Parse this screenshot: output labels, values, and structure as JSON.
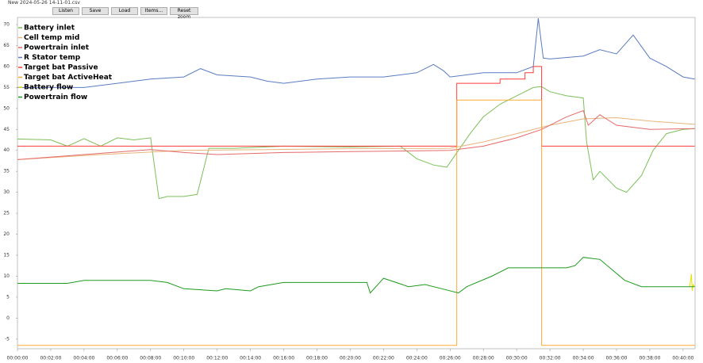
{
  "window": {
    "title": "New 2024-05-26 14-11-01.csv",
    "buttons": [
      "Listen",
      "Save",
      "Load",
      "Items...",
      "Reset zoom"
    ]
  },
  "chart_data": {
    "type": "line",
    "legend": "upper left",
    "grid": false,
    "xlim": [
      0,
      40.72
    ],
    "ylim": [
      -7.3,
      71.7
    ],
    "xticks": [
      {
        "value": 0,
        "label": "00:00:00"
      },
      {
        "value": 2,
        "label": "00:02:00"
      },
      {
        "value": 4,
        "label": "00:04:00"
      },
      {
        "value": 6,
        "label": "00:06:00"
      },
      {
        "value": 8,
        "label": "00:08:00"
      },
      {
        "value": 10,
        "label": "00:10:00"
      },
      {
        "value": 12,
        "label": "00:12:00"
      },
      {
        "value": 14,
        "label": "00:14:00"
      },
      {
        "value": 16,
        "label": "00:16:00"
      },
      {
        "value": 18,
        "label": "00:18:00"
      },
      {
        "value": 20,
        "label": "00:20:00"
      },
      {
        "value": 22,
        "label": "00:22:00"
      },
      {
        "value": 24,
        "label": "00:24:00"
      },
      {
        "value": 26,
        "label": "00:26:00"
      },
      {
        "value": 28,
        "label": "00:28:00"
      },
      {
        "value": 30,
        "label": "00:30:00"
      },
      {
        "value": 32,
        "label": "00:32:00"
      },
      {
        "value": 34,
        "label": "00:34:00"
      },
      {
        "value": 36,
        "label": "00:36:00"
      },
      {
        "value": 38,
        "label": "00:38:00"
      },
      {
        "value": 40,
        "label": "00:40:00"
      }
    ],
    "yticks": [
      -5,
      0,
      5,
      10,
      15,
      20,
      25,
      30,
      35,
      40,
      45,
      50,
      55,
      60,
      65,
      70
    ],
    "series": [
      {
        "name": "Battery inlet",
        "color": "#7cc05a",
        "x": [
          0,
          2,
          3,
          4,
          5,
          6,
          7,
          8,
          8.5,
          9,
          10,
          10.8,
          11.5,
          13,
          16,
          20,
          23,
          24,
          25,
          25.8,
          26.5,
          27.2,
          28,
          29,
          30,
          31,
          31.5,
          32,
          33,
          34,
          34.2,
          34.6,
          35,
          36,
          36.6,
          37.5,
          38.2,
          39,
          40,
          40.7
        ],
        "values": [
          42.7,
          42.5,
          41,
          42.8,
          41,
          43,
          42.5,
          43,
          28.5,
          29,
          29,
          29.5,
          40.5,
          40.5,
          41,
          40.8,
          41,
          38,
          36.5,
          36,
          40,
          44,
          48,
          51,
          53,
          55,
          55.2,
          54,
          53,
          52.5,
          42,
          33,
          35,
          31,
          30,
          34,
          40,
          44,
          45,
          45.2
        ]
      },
      {
        "name": "Cell temp mid",
        "color": "#e8b47a",
        "x": [
          0,
          5,
          10,
          15,
          20,
          26,
          28,
          30,
          32,
          34,
          36,
          38,
          40.7
        ],
        "values": [
          37.8,
          39,
          40,
          40.2,
          40.4,
          40.5,
          42,
          44,
          46,
          47.5,
          47.8,
          47,
          46.2
        ]
      },
      {
        "name": "Powertrain inlet",
        "color": "#e46a6a",
        "x": [
          0,
          4,
          8,
          10,
          12,
          16,
          20,
          26,
          28,
          30,
          31.5,
          33,
          34,
          34.3,
          35,
          36,
          38,
          40.7
        ],
        "values": [
          37.8,
          39,
          40.2,
          39.5,
          39,
          39.5,
          39.7,
          40,
          41,
          43,
          45,
          48,
          49.5,
          46,
          48.5,
          46,
          45,
          45.2
        ]
      },
      {
        "name": "R Stator temp",
        "color": "#5a7cc0",
        "x": [
          0,
          4,
          6,
          8,
          10,
          11,
          12,
          14,
          15,
          16,
          18,
          20,
          22,
          24,
          25,
          25.6,
          26,
          28,
          30,
          31,
          31.3,
          31.6,
          32,
          34,
          35,
          36,
          37,
          38,
          39,
          40,
          40.7
        ],
        "values": [
          55,
          55,
          56,
          57,
          57.5,
          59.5,
          58,
          57.5,
          56.5,
          56,
          57,
          57.5,
          57.5,
          58.5,
          60.5,
          59,
          57.5,
          58.5,
          58.5,
          60,
          71.5,
          62,
          61.8,
          62.5,
          64,
          63,
          67.5,
          62,
          60,
          57.5,
          57
        ]
      },
      {
        "name": "Target bat Passive",
        "color": "#ff3a3a",
        "x": [
          0,
          26.4,
          26.4,
          29,
          29,
          30.5,
          30.5,
          31,
          31,
          31.5,
          31.5,
          40.7
        ],
        "values": [
          41,
          41,
          56,
          56,
          57,
          57,
          58.5,
          58.5,
          60,
          60,
          41,
          41
        ]
      },
      {
        "name": "Target bat ActiveHeat",
        "color": "#ffa836",
        "x": [
          0,
          26.4,
          26.4,
          31.5,
          31.5,
          40.7
        ],
        "values": [
          -6.5,
          -6.5,
          52,
          52,
          -6.5,
          -6.5
        ]
      },
      {
        "name": "Battery flow",
        "color": "#e8e000",
        "x": [
          40.4,
          40.5,
          40.55,
          40.6,
          40.7
        ],
        "values": [
          7.5,
          10.5,
          6.5,
          8,
          7.5
        ]
      },
      {
        "name": "Powertrain flow",
        "color": "#1e9a1e",
        "x": [
          0,
          3,
          4,
          8,
          9,
          10,
          12,
          12.5,
          14,
          14.5,
          16,
          21,
          21.2,
          22,
          23.5,
          24.5,
          25.5,
          26.5,
          27,
          28.5,
          29.5,
          33,
          33.5,
          34,
          35,
          36.5,
          37.5,
          40.7
        ],
        "values": [
          8.3,
          8.3,
          9,
          9,
          8.5,
          7,
          6.5,
          7,
          6.5,
          7.5,
          8.5,
          8.5,
          6,
          9.5,
          7.5,
          8,
          7,
          6,
          7.5,
          10,
          12,
          12,
          12.5,
          14.5,
          14,
          9,
          7.5,
          7.5
        ]
      }
    ]
  }
}
